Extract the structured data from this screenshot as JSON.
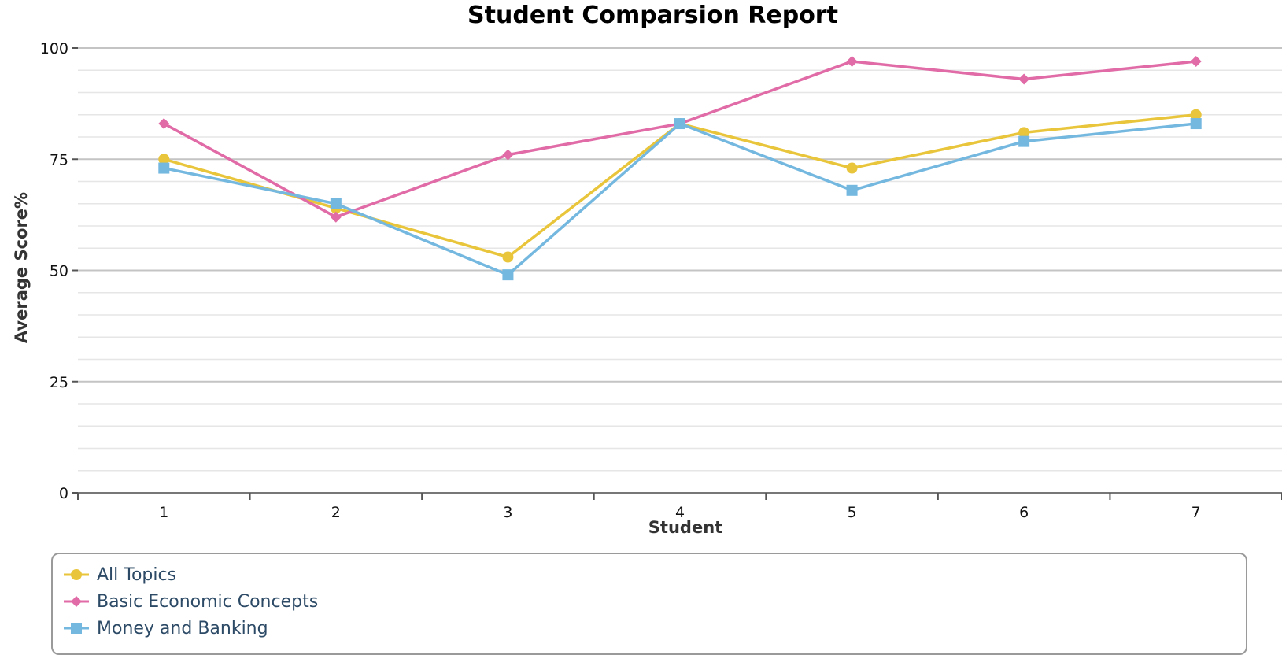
{
  "chart_data": {
    "type": "line",
    "title": "Student Comparsion Report",
    "xlabel": "Student",
    "ylabel": "Average Score%",
    "categories": [
      "1",
      "2",
      "3",
      "4",
      "5",
      "6",
      "7"
    ],
    "ylim": [
      0,
      100
    ],
    "yticks": [
      "0",
      "25",
      "50",
      "75",
      "100"
    ],
    "grid": true,
    "legend_position": "bottom-left",
    "series": [
      {
        "name": "All Topics",
        "color": "#e8c53a",
        "marker": "circle",
        "values": [
          75,
          64,
          53,
          83,
          73,
          81,
          85
        ]
      },
      {
        "name": "Basic Economic Concepts",
        "color": "#e06ba6",
        "marker": "diamond",
        "values": [
          83,
          62,
          76,
          83,
          97,
          93,
          97
        ]
      },
      {
        "name": "Money and Banking",
        "color": "#74b8e0",
        "marker": "square",
        "values": [
          73,
          65,
          49,
          83,
          68,
          79,
          83
        ]
      }
    ]
  }
}
